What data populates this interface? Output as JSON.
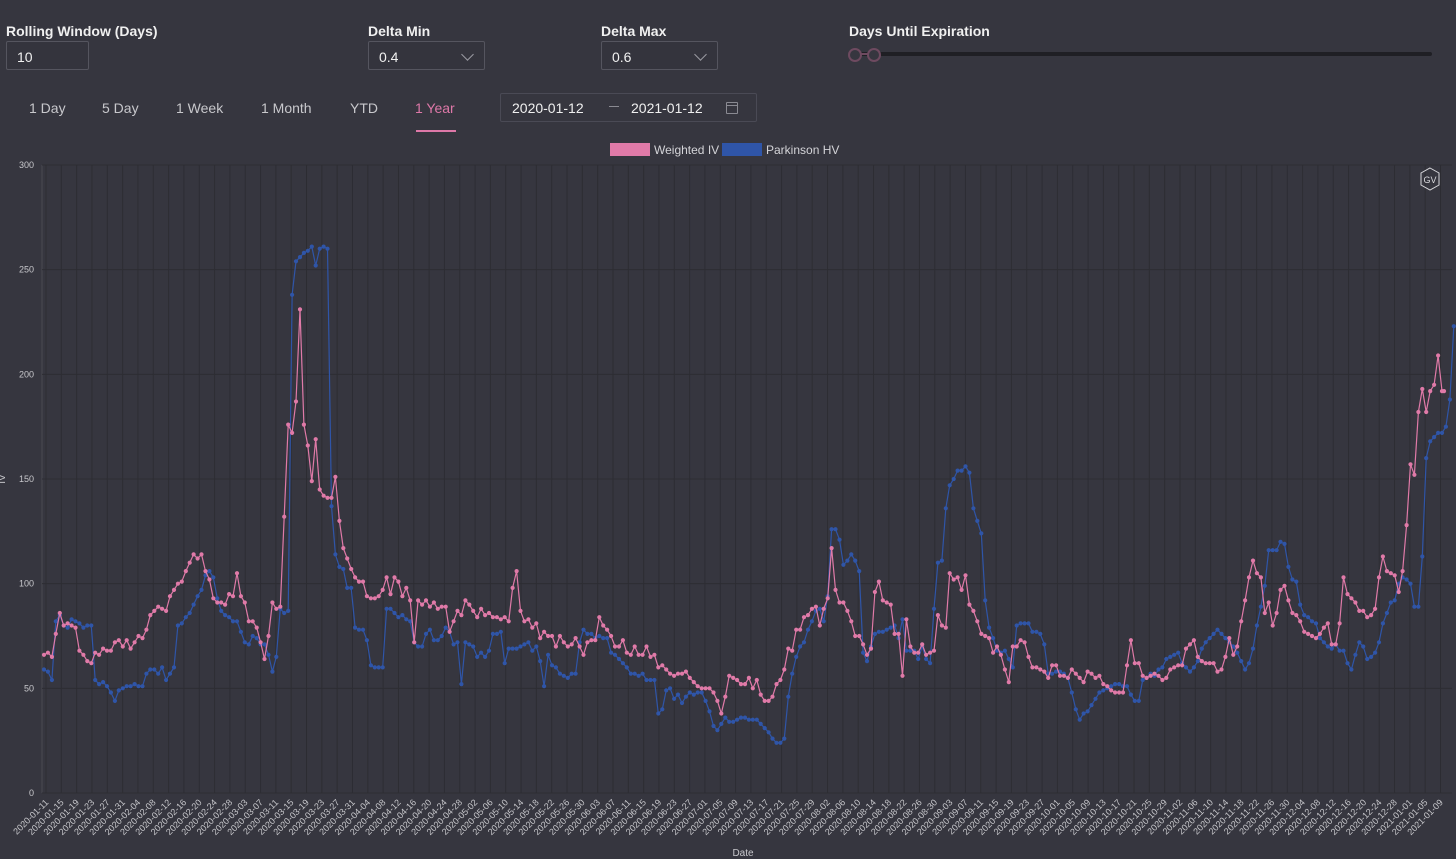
{
  "controls": {
    "rolling_window": {
      "label": "Rolling Window (Days)",
      "value": "10"
    },
    "delta_min": {
      "label": "Delta Min",
      "value": "0.4"
    },
    "delta_max": {
      "label": "Delta Max",
      "value": "0.6"
    },
    "days_until_expiration": {
      "label": "Days Until Expiration",
      "range": [
        0,
        0.05
      ]
    }
  },
  "tabs": [
    {
      "label": "1 Day",
      "active": false
    },
    {
      "label": "5 Day",
      "active": false
    },
    {
      "label": "1 Week",
      "active": false
    },
    {
      "label": "1 Month",
      "active": false
    },
    {
      "label": "YTD",
      "active": false
    },
    {
      "label": "1 Year",
      "active": true
    }
  ],
  "date_range": {
    "start": "2020-01-12",
    "end": "2021-01-12"
  },
  "badge": "GV",
  "colors": {
    "weighted_iv": "#e07aa8",
    "parkinson_hv": "#2f55a8",
    "accent": "#de78a8",
    "background": "#36363f"
  },
  "chart_data": {
    "type": "line",
    "xlabel": "Date",
    "ylabel": "IV",
    "ylim": [
      0,
      300
    ],
    "yticks": [
      0,
      50,
      100,
      150,
      200,
      250,
      300
    ],
    "grid": true,
    "legend_position": "top-center",
    "x_tick_labels": [
      "2020-01-11",
      "2020-01-15",
      "2020-01-19",
      "2020-01-23",
      "2020-01-27",
      "2020-01-31",
      "2020-02-04",
      "2020-02-08",
      "2020-02-12",
      "2020-02-16",
      "2020-02-20",
      "2020-02-24",
      "2020-02-28",
      "2020-03-03",
      "2020-03-07",
      "2020-03-11",
      "2020-03-15",
      "2020-03-19",
      "2020-03-23",
      "2020-03-27",
      "2020-03-31",
      "2020-04-04",
      "2020-04-08",
      "2020-04-12",
      "2020-04-16",
      "2020-04-20",
      "2020-04-24",
      "2020-04-28",
      "2020-05-02",
      "2020-05-06",
      "2020-05-10",
      "2020-05-14",
      "2020-05-18",
      "2020-05-22",
      "2020-05-26",
      "2020-05-30",
      "2020-06-03",
      "2020-06-07",
      "2020-06-11",
      "2020-06-15",
      "2020-06-19",
      "2020-06-23",
      "2020-06-27",
      "2020-07-01",
      "2020-07-05",
      "2020-07-09",
      "2020-07-13",
      "2020-07-17",
      "2020-07-21",
      "2020-07-25",
      "2020-07-29",
      "2020-08-02",
      "2020-08-06",
      "2020-08-10",
      "2020-08-14",
      "2020-08-18",
      "2020-08-22",
      "2020-08-26",
      "2020-08-30",
      "2020-09-03",
      "2020-09-07",
      "2020-09-11",
      "2020-09-15",
      "2020-09-19",
      "2020-09-23",
      "2020-09-27",
      "2020-10-01",
      "2020-10-05",
      "2020-10-09",
      "2020-10-13",
      "2020-10-17",
      "2020-10-21",
      "2020-10-25",
      "2020-10-29",
      "2020-11-02",
      "2020-11-06",
      "2020-11-10",
      "2020-11-14",
      "2020-11-18",
      "2020-11-22",
      "2020-11-26",
      "2020-11-30",
      "2020-12-04",
      "2020-12-08",
      "2020-12-12",
      "2020-12-16",
      "2020-12-20",
      "2020-12-24",
      "2020-12-28",
      "2021-01-01",
      "2021-01-05",
      "2021-01-09"
    ],
    "series": [
      {
        "name": "Weighted IV",
        "color": "#e07aa8",
        "values": [
          66,
          67,
          65,
          76,
          86,
          80,
          81,
          80,
          79,
          68,
          66,
          63,
          62,
          67,
          66,
          69,
          68,
          68,
          72,
          73,
          70,
          73,
          69,
          72,
          75,
          74,
          78,
          85,
          87,
          89,
          88,
          87,
          94,
          97,
          100,
          101,
          106,
          110,
          114,
          112,
          114,
          106,
          102,
          93,
          91,
          91,
          90,
          95,
          94,
          105,
          94,
          91,
          82,
          82,
          79,
          72,
          64,
          75,
          91,
          88,
          89,
          132,
          176,
          172,
          187,
          231,
          176,
          166,
          149,
          169,
          145,
          142,
          141,
          141,
          151,
          130,
          117,
          112,
          107,
          103,
          101,
          101,
          94,
          93,
          93,
          94,
          97,
          103,
          95,
          103,
          101,
          94,
          98,
          92,
          72,
          92,
          90,
          92,
          89,
          91,
          88,
          89,
          89,
          77,
          82,
          87,
          85,
          92,
          90,
          87,
          84,
          88,
          85,
          86,
          84,
          84,
          83,
          84,
          82,
          98,
          106,
          87,
          82,
          83,
          79,
          81,
          74,
          77,
          75,
          75,
          70,
          75,
          72,
          70,
          71,
          74,
          70,
          66,
          72,
          73,
          73,
          84,
          80,
          78,
          75,
          70,
          70,
          73,
          67,
          66,
          70,
          66,
          66,
          70,
          65,
          66,
          60,
          61,
          59,
          57,
          56,
          57,
          57,
          58,
          55,
          53,
          51,
          50,
          50,
          50,
          48,
          44,
          38,
          46,
          56,
          55,
          54,
          52,
          52,
          55,
          50,
          54,
          47,
          44,
          44,
          46,
          52,
          54,
          59,
          69,
          68,
          78,
          78,
          84,
          85,
          88,
          89,
          80,
          88,
          93,
          117,
          97,
          91,
          91,
          87,
          82,
          75,
          75,
          71,
          66,
          69,
          96,
          101,
          92,
          91,
          90,
          76,
          76,
          56,
          83,
          70,
          67,
          67,
          71,
          66,
          67,
          68,
          85,
          80,
          79,
          105,
          102,
          103,
          97,
          104,
          90,
          87,
          82,
          76,
          75,
          74,
          67,
          70,
          66,
          59,
          53,
          70,
          70,
          73,
          72,
          65,
          60,
          60,
          59,
          58,
          55,
          61,
          61,
          56,
          56,
          55,
          59,
          57,
          55,
          53,
          58,
          57,
          55,
          56,
          52,
          51,
          49,
          48,
          48,
          48,
          61,
          73,
          62,
          62,
          56,
          55,
          56,
          57,
          56,
          54,
          55,
          59,
          60,
          61,
          61,
          69,
          71,
          73,
          65,
          63,
          62,
          62,
          62,
          58,
          59,
          65,
          74,
          66,
          70,
          82,
          92,
          103,
          111,
          105,
          103,
          86,
          91,
          80,
          86,
          97,
          99,
          92,
          86,
          85,
          82,
          77,
          76,
          75,
          74,
          76,
          79,
          81,
          71,
          71,
          81,
          103,
          95,
          93,
          91,
          87,
          87,
          84,
          85,
          88,
          103,
          113,
          106,
          105,
          104,
          96,
          106,
          128,
          157,
          152,
          182,
          193,
          182,
          192,
          195,
          209,
          192
        ],
        "last_point": {
          "x": "2021-01-12",
          "y": 192
        }
      },
      {
        "name": "Parkinson HV",
        "color": "#2f55a8",
        "values": [
          59,
          58,
          54,
          82,
          85,
          80,
          79,
          83,
          82,
          81,
          79,
          80,
          80,
          54,
          52,
          53,
          51,
          48,
          44,
          49,
          50,
          51,
          51,
          52,
          51,
          51,
          57,
          59,
          59,
          57,
          60,
          54,
          57,
          60,
          80,
          81,
          84,
          86,
          90,
          94,
          97,
          104,
          106,
          103,
          93,
          87,
          85,
          84,
          82,
          82,
          77,
          72,
          71,
          75,
          74,
          71,
          71,
          66,
          58,
          65,
          88,
          86,
          87,
          238,
          254,
          256,
          258,
          259,
          261,
          252,
          260,
          261,
          260,
          137,
          114,
          108,
          107,
          98,
          98,
          79,
          78,
          78,
          73,
          61,
          60,
          60,
          60,
          88,
          88,
          86,
          84,
          85,
          83,
          82,
          72,
          70,
          70,
          76,
          78,
          73,
          73,
          75,
          79,
          77,
          71,
          72,
          52,
          72,
          71,
          70,
          65,
          67,
          65,
          68,
          76,
          76,
          77,
          62,
          69,
          69,
          69,
          70,
          71,
          72,
          68,
          70,
          63,
          51,
          66,
          61,
          60,
          57,
          56,
          55,
          57,
          57,
          72,
          78,
          76,
          76,
          74,
          75,
          74,
          74,
          67,
          66,
          64,
          62,
          60,
          57,
          57,
          56,
          57,
          54,
          54,
          54,
          38,
          40,
          49,
          50,
          45,
          47,
          43,
          46,
          48,
          47,
          48,
          48,
          44,
          39,
          32,
          30,
          33,
          36,
          34,
          34,
          35,
          36,
          36,
          35,
          35,
          35,
          33,
          31,
          29,
          26,
          24,
          24,
          26,
          46,
          57,
          65,
          70,
          72,
          78,
          82,
          87,
          88,
          82,
          94,
          126,
          126,
          121,
          109,
          111,
          114,
          111,
          106,
          67,
          63,
          70,
          76,
          77,
          77,
          78,
          79,
          80,
          74,
          83,
          68,
          68,
          68,
          64,
          70,
          64,
          62,
          88,
          110,
          111,
          136,
          147,
          150,
          154,
          154,
          156,
          153,
          136,
          130,
          124,
          92,
          79,
          74,
          68,
          67,
          68,
          64,
          60,
          80,
          81,
          81,
          81,
          77,
          77,
          76,
          71,
          57,
          57,
          58,
          58,
          57,
          55,
          48,
          40,
          35,
          38,
          39,
          42,
          45,
          48,
          49,
          50,
          51,
          52,
          52,
          51,
          51,
          47,
          44,
          44,
          54,
          55,
          57,
          56,
          59,
          60,
          64,
          65,
          66,
          67,
          62,
          60,
          58,
          60,
          63,
          69,
          72,
          74,
          76,
          78,
          76,
          74,
          72,
          70,
          67,
          63,
          59,
          62,
          69,
          80,
          89,
          99,
          116,
          116,
          116,
          120,
          119,
          108,
          102,
          101,
          90,
          85,
          84,
          82,
          81,
          74,
          72,
          70,
          69,
          71,
          68,
          68,
          62,
          59,
          66,
          72,
          70,
          64,
          65,
          67,
          72,
          81,
          86,
          91,
          92,
          100,
          103,
          102,
          100,
          89,
          89,
          113,
          160,
          168,
          170,
          172,
          172,
          175,
          188,
          223
        ]
      }
    ]
  }
}
